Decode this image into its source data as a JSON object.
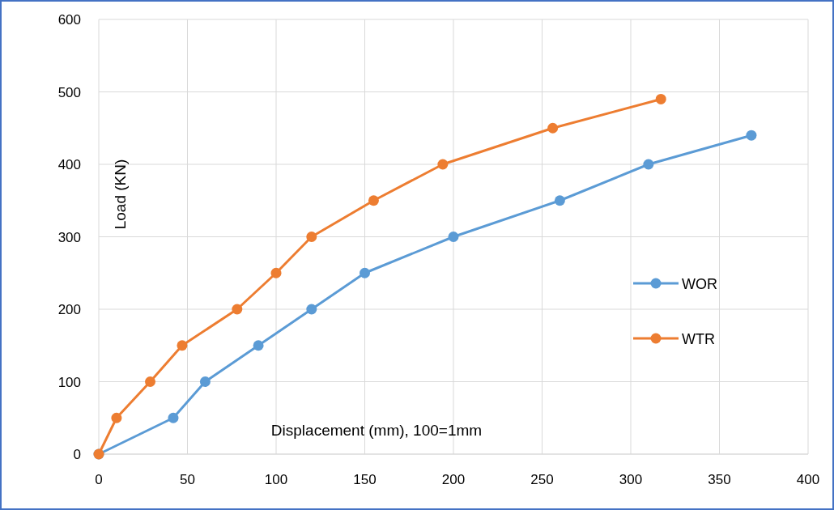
{
  "chart_data": {
    "type": "line",
    "xlabel": "Displacement (mm), 100=1mm",
    "ylabel": "Load (KN)",
    "xlim": [
      0,
      400
    ],
    "xticks": [
      0,
      50,
      100,
      150,
      200,
      250,
      300,
      350,
      400
    ],
    "ylim": [
      0,
      600
    ],
    "yticks": [
      0,
      100,
      200,
      300,
      400,
      500,
      600
    ],
    "series": [
      {
        "name": "WOR",
        "color": "#5b9bd5",
        "x": [
          0,
          42,
          60,
          90,
          120,
          150,
          200,
          260,
          310,
          368
        ],
        "values": [
          0,
          50,
          100,
          150,
          200,
          250,
          300,
          350,
          400,
          440
        ]
      },
      {
        "name": "WTR",
        "color": "#ed7d31",
        "x": [
          0,
          10,
          29,
          47,
          78,
          100,
          120,
          155,
          194,
          256,
          317
        ],
        "values": [
          0,
          50,
          100,
          150,
          200,
          250,
          300,
          350,
          400,
          450,
          490
        ]
      }
    ],
    "grid": true,
    "legend": "right",
    "marker": "circle",
    "line_style": "solid"
  }
}
